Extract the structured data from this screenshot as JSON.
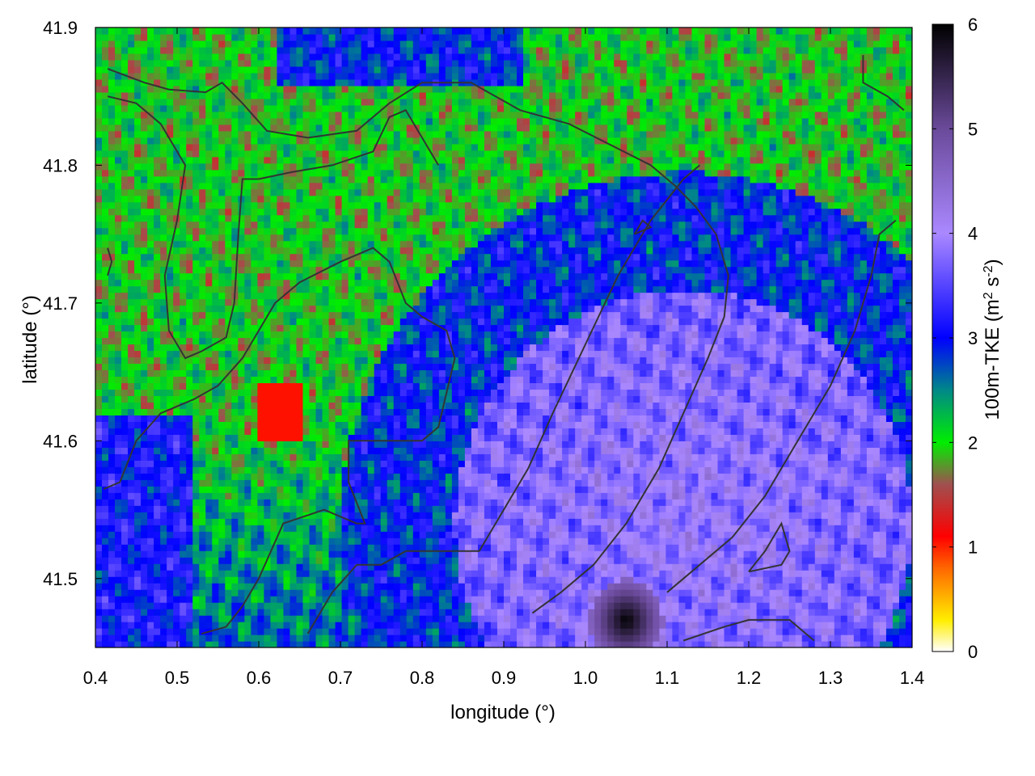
{
  "chart_data": {
    "type": "heatmap",
    "title": "",
    "xlabel": "longitude (°)",
    "ylabel": "latitude (°)",
    "xlim": [
      0.4,
      1.4
    ],
    "ylim": [
      41.45,
      41.9
    ],
    "xticks": [
      0.4,
      0.5,
      0.6,
      0.7,
      0.8,
      0.9,
      1.0,
      1.1,
      1.2,
      1.3,
      1.4
    ],
    "xtick_labels": [
      "0.4",
      "0.5",
      "0.6",
      "0.7",
      "0.8",
      "0.9",
      "1.0",
      "1.1",
      "1.2",
      "1.3",
      "1.4"
    ],
    "yticks": [
      41.5,
      41.6,
      41.7,
      41.8,
      41.9
    ],
    "ytick_labels": [
      "41.5",
      "41.6",
      "41.7",
      "41.8",
      "41.9"
    ],
    "colorbar": {
      "label_prefix": "100m-TKE (m",
      "label_sup1": "2",
      "label_mid": " s",
      "label_sup2": "-2",
      "label_suffix": ")",
      "range": [
        0,
        6
      ],
      "ticks": [
        0,
        1,
        2,
        3,
        4,
        5,
        6
      ],
      "tick_labels": [
        "0",
        "1",
        "2",
        "3",
        "4",
        "5",
        "6"
      ],
      "colormap": [
        [
          0,
          "#ffffff"
        ],
        [
          0.3,
          "#ffee00"
        ],
        [
          0.8,
          "#ff6600"
        ],
        [
          1.1,
          "#ff0000"
        ],
        [
          1.6,
          "#a05050"
        ],
        [
          2.0,
          "#00ee00"
        ],
        [
          2.5,
          "#008888"
        ],
        [
          3.0,
          "#0000ff"
        ],
        [
          4.0,
          "#aa88ff"
        ],
        [
          5.0,
          "#6a4a9a"
        ],
        [
          6.0,
          "#000000"
        ]
      ]
    },
    "regions": {
      "ne_green_zone_mean": 2.0,
      "sw_blue_zone_mean": 2.9,
      "se_lavender_zone_mean": 3.7,
      "peak_near_lon_lat": [
        1.05,
        41.47
      ],
      "peak_value": 6.0
    },
    "contours": [
      {
        "points": [
          [
            0.415,
            41.87
          ],
          [
            0.46,
            41.86
          ],
          [
            0.49,
            41.855
          ],
          [
            0.535,
            41.853
          ],
          [
            0.555,
            41.86
          ],
          [
            0.58,
            41.845
          ],
          [
            0.61,
            41.825
          ],
          [
            0.66,
            41.82
          ],
          [
            0.72,
            41.825
          ],
          [
            0.76,
            41.845
          ],
          [
            0.8,
            41.86
          ],
          [
            0.86,
            41.86
          ],
          [
            0.92,
            41.84
          ],
          [
            0.98,
            41.83
          ],
          [
            1.03,
            41.815
          ],
          [
            1.08,
            41.8
          ],
          [
            1.11,
            41.785
          ],
          [
            1.135,
            41.77
          ],
          [
            1.16,
            41.75
          ],
          [
            1.175,
            41.72
          ],
          [
            1.17,
            41.69
          ],
          [
            1.15,
            41.66
          ],
          [
            1.12,
            41.62
          ],
          [
            1.09,
            41.58
          ],
          [
            1.05,
            41.54
          ],
          [
            1.01,
            41.51
          ],
          [
            0.97,
            41.49
          ],
          [
            0.935,
            41.475
          ]
        ]
      },
      {
        "points": [
          [
            0.415,
            41.85
          ],
          [
            0.45,
            41.845
          ],
          [
            0.48,
            41.83
          ],
          [
            0.51,
            41.8
          ],
          [
            0.5,
            41.76
          ],
          [
            0.485,
            41.72
          ],
          [
            0.49,
            41.68
          ],
          [
            0.51,
            41.66
          ],
          [
            0.53,
            41.665
          ],
          [
            0.56,
            41.675
          ],
          [
            0.57,
            41.7
          ],
          [
            0.575,
            41.75
          ],
          [
            0.58,
            41.79
          ],
          [
            0.6,
            41.79
          ],
          [
            0.64,
            41.795
          ],
          [
            0.69,
            41.8
          ],
          [
            0.74,
            41.81
          ],
          [
            0.76,
            41.835
          ],
          [
            0.78,
            41.84
          ],
          [
            0.8,
            41.82
          ],
          [
            0.82,
            41.8
          ]
        ]
      },
      {
        "points": [
          [
            0.41,
            41.565
          ],
          [
            0.43,
            41.57
          ],
          [
            0.45,
            41.6
          ],
          [
            0.48,
            41.62
          ],
          [
            0.52,
            41.63
          ],
          [
            0.55,
            41.64
          ],
          [
            0.58,
            41.66
          ],
          [
            0.6,
            41.68
          ],
          [
            0.62,
            41.7
          ],
          [
            0.65,
            41.715
          ],
          [
            0.7,
            41.73
          ],
          [
            0.74,
            41.74
          ],
          [
            0.76,
            41.73
          ],
          [
            0.78,
            41.7
          ],
          [
            0.8,
            41.69
          ],
          [
            0.83,
            41.68
          ],
          [
            0.84,
            41.66
          ],
          [
            0.82,
            41.61
          ],
          [
            0.8,
            41.6
          ],
          [
            0.74,
            41.6
          ],
          [
            0.71,
            41.6
          ],
          [
            0.71,
            41.57
          ],
          [
            0.73,
            41.54
          ],
          [
            0.72,
            41.54
          ],
          [
            0.68,
            41.55
          ],
          [
            0.63,
            41.54
          ],
          [
            0.6,
            41.5
          ],
          [
            0.58,
            41.48
          ],
          [
            0.56,
            41.465
          ],
          [
            0.53,
            41.46
          ]
        ]
      },
      {
        "points": [
          [
            0.66,
            41.46
          ],
          [
            0.69,
            41.49
          ],
          [
            0.72,
            41.51
          ],
          [
            0.75,
            41.51
          ],
          [
            0.78,
            41.52
          ],
          [
            0.83,
            41.52
          ],
          [
            0.87,
            41.52
          ],
          [
            0.9,
            41.55
          ],
          [
            0.93,
            41.58
          ],
          [
            0.96,
            41.62
          ],
          [
            1.0,
            41.67
          ],
          [
            1.04,
            41.72
          ],
          [
            1.08,
            41.76
          ],
          [
            1.12,
            41.79
          ],
          [
            1.14,
            41.8
          ]
        ]
      },
      {
        "points": [
          [
            1.12,
            41.455
          ],
          [
            1.17,
            41.465
          ],
          [
            1.2,
            41.47
          ],
          [
            1.25,
            41.47
          ],
          [
            1.28,
            41.455
          ]
        ]
      },
      {
        "points": [
          [
            1.2,
            41.505
          ],
          [
            1.24,
            41.51
          ],
          [
            1.25,
            41.52
          ],
          [
            1.24,
            41.54
          ],
          [
            1.22,
            41.52
          ],
          [
            1.2,
            41.505
          ]
        ]
      },
      {
        "points": [
          [
            1.1,
            41.49
          ],
          [
            1.14,
            41.51
          ],
          [
            1.18,
            41.53
          ],
          [
            1.22,
            41.56
          ],
          [
            1.26,
            41.6
          ],
          [
            1.3,
            41.64
          ],
          [
            1.33,
            41.68
          ],
          [
            1.35,
            41.72
          ],
          [
            1.36,
            41.75
          ],
          [
            1.38,
            41.76
          ]
        ]
      },
      {
        "points": [
          [
            1.34,
            41.88
          ],
          [
            1.34,
            41.86
          ],
          [
            1.37,
            41.85
          ],
          [
            1.39,
            41.84
          ]
        ]
      },
      {
        "points": [
          [
            1.06,
            41.75
          ],
          [
            1.08,
            41.755
          ],
          [
            1.07,
            41.76
          ],
          [
            1.06,
            41.75
          ]
        ]
      },
      {
        "points": [
          [
            0.415,
            41.74
          ],
          [
            0.42,
            41.73
          ],
          [
            0.415,
            41.72
          ]
        ]
      }
    ]
  }
}
